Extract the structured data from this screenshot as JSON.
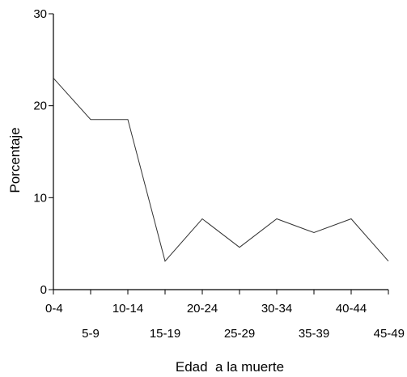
{
  "chart_data": {
    "type": "line",
    "title": "",
    "xlabel": "Edad  a la muerte",
    "ylabel": "Porcentaje",
    "categories": [
      "0-4",
      "5-9",
      "10-14",
      "15-19",
      "20-24",
      "25-29",
      "30-34",
      "35-39",
      "40-44",
      "45-49"
    ],
    "values": [
      23.0,
      18.5,
      18.5,
      3.1,
      7.7,
      4.6,
      7.7,
      6.2,
      7.7,
      3.1
    ],
    "ylim": [
      0,
      30
    ],
    "yticks": [
      0,
      10,
      20,
      30
    ],
    "grid": false,
    "legend": false,
    "line_color": "#333333"
  }
}
